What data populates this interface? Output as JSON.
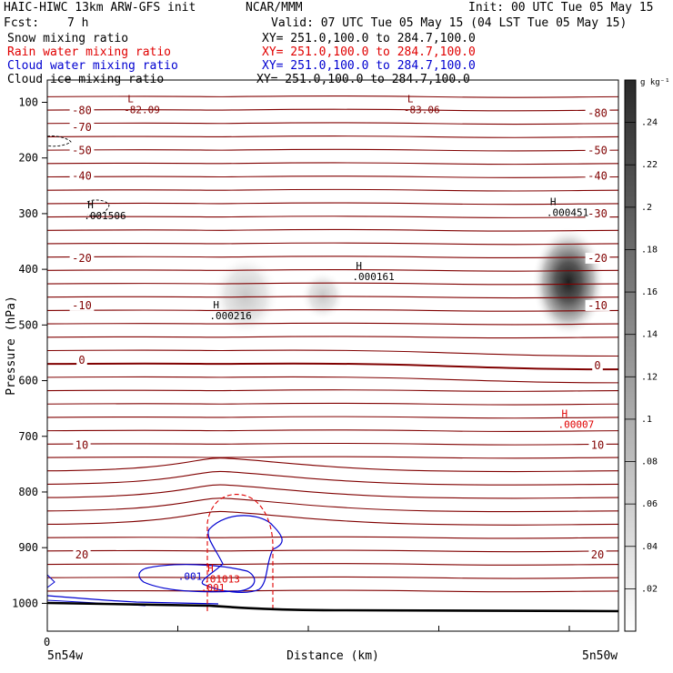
{
  "header": {
    "title": "HAIC-HIWC 13km ARW-GFS init",
    "org": "NCAR/MMM",
    "init": "Init: 00 UTC Tue 05 May 15",
    "fcst_label": "Fcst:",
    "fcst_value": "7 h",
    "valid": "Valid: 07 UTC Tue 05 May 15 (04 LST Tue 05 May 15)",
    "fields": [
      {
        "name": "Snow mixing ratio",
        "xy": "XY= 251.0,100.0 to 284.7,100.0",
        "color": "#000000"
      },
      {
        "name": "Rain water mixing ratio",
        "xy": "XY= 251.0,100.0 to 284.7,100.0",
        "color": "#e00000"
      },
      {
        "name": "Cloud water mixing ratio",
        "xy": "XY= 251.0,100.0 to 284.7,100.0",
        "color": "#0000d0"
      },
      {
        "name": "Cloud ice mixing ratio",
        "xy": "XY= 251.0,100.0 to 284.7,100.0",
        "color": "#000000"
      }
    ]
  },
  "chart_data": {
    "type": "contour",
    "xlabel": "Distance (km)",
    "ylabel": "Pressure (hPa)",
    "x_origin_label": "0",
    "x_left_label": "5n54w",
    "x_right_label": "5n50w",
    "y_ticks": [
      100,
      200,
      300,
      400,
      500,
      600,
      700,
      800,
      900,
      1000
    ],
    "ylim": [
      1050,
      60
    ],
    "temperature_contours": {
      "color": "#800000",
      "labels": [
        {
          "text": "-80",
          "p": 115,
          "side": "left"
        },
        {
          "text": "-80",
          "p": 120,
          "side": "right"
        },
        {
          "text": "-70",
          "p": 145,
          "side": "left"
        },
        {
          "text": "-50",
          "p": 187,
          "side": "left"
        },
        {
          "text": "-50",
          "p": 187,
          "side": "right"
        },
        {
          "text": "-40",
          "p": 232,
          "side": "left"
        },
        {
          "text": "-40",
          "p": 232,
          "side": "right"
        },
        {
          "text": "-30",
          "p": 300,
          "side": "right"
        },
        {
          "text": "-20",
          "p": 380,
          "side": "left"
        },
        {
          "text": "-20",
          "p": 380,
          "side": "right"
        },
        {
          "text": "-10",
          "p": 465,
          "side": "left"
        },
        {
          "text": "-10",
          "p": 465,
          "side": "right"
        },
        {
          "text": "0",
          "p": 563,
          "side": "left"
        },
        {
          "text": "0",
          "p": 573,
          "side": "right"
        },
        {
          "text": "10",
          "p": 716,
          "side": "left"
        },
        {
          "text": "10",
          "p": 716,
          "side": "right"
        },
        {
          "text": "20",
          "p": 913,
          "side": "left"
        },
        {
          "text": "20",
          "p": 913,
          "side": "right"
        }
      ]
    },
    "extrema": [
      {
        "kind": "L",
        "value": "-82.09",
        "x": 0.15,
        "p": 100,
        "color": "#800000"
      },
      {
        "kind": "L",
        "value": "-83.06",
        "x": 0.64,
        "p": 100,
        "color": "#800000"
      },
      {
        "kind": "H",
        "value": ".001506",
        "x": 0.08,
        "p": 290,
        "color": "#000000"
      },
      {
        "kind": "H",
        "value": ".000216",
        "x": 0.3,
        "p": 470,
        "color": "#000000"
      },
      {
        "kind": "H",
        "value": ".000161",
        "x": 0.55,
        "p": 400,
        "color": "#000000"
      },
      {
        "kind": "H",
        "value": ".000451",
        "x": 0.89,
        "p": 285,
        "color": "#000000"
      },
      {
        "kind": "H",
        "value": ".00007",
        "x": 0.91,
        "p": 665,
        "color": "#e00000"
      },
      {
        "kind": "H",
        "value": ".01013",
        "x": 0.29,
        "p": 943,
        "color": "#e00000"
      }
    ],
    "contour_labels": [
      {
        "text": ".001",
        "x": 0.25,
        "p": 958,
        "color": "#0000d0"
      },
      {
        "text": ".001",
        "x": 0.29,
        "p": 978,
        "color": "#e00000"
      }
    ],
    "colorbar": {
      "unit": "g kg⁻¹",
      "min": 0,
      "max": 0.26,
      "ticks": [
        ".02",
        ".04",
        ".06",
        ".08",
        ".1",
        ".12",
        ".14",
        ".16",
        ".18",
        ".2",
        ".22",
        ".24"
      ]
    }
  }
}
